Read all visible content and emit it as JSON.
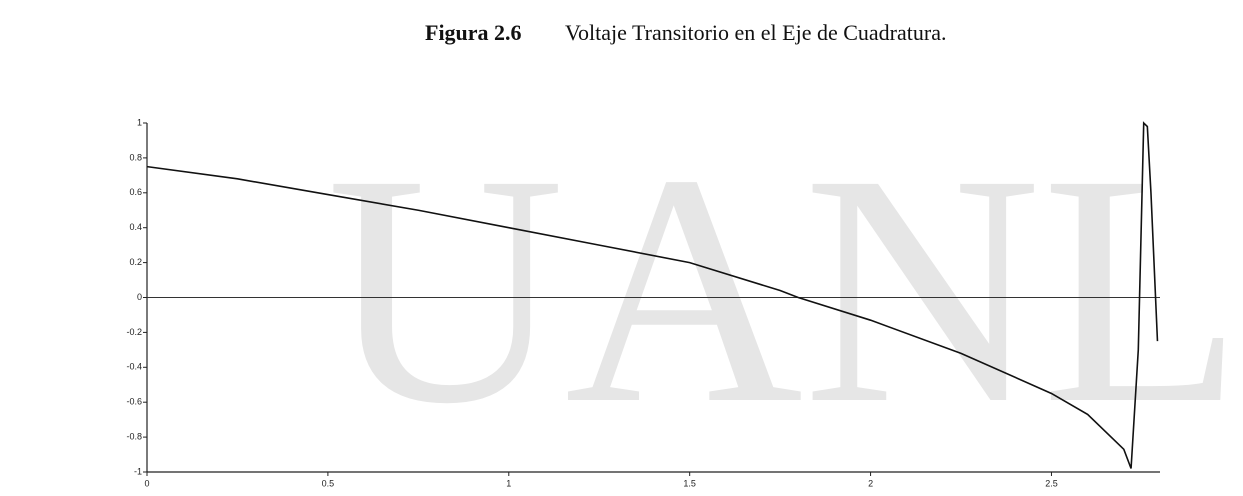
{
  "chart_data": {
    "type": "line",
    "figure_label": "Figura 2.6",
    "title": "Voltaje Transitorio en el Eje de Cuadratura.",
    "watermark": "UANL",
    "x": [
      0,
      0.25,
      0.5,
      0.75,
      1,
      1.25,
      1.5,
      1.75,
      1.8,
      2,
      2.25,
      2.5,
      2.6,
      2.7,
      2.72,
      2.74,
      2.755,
      2.765,
      2.775,
      2.793
    ],
    "series": [
      {
        "color": "#111111",
        "values": [
          0.75,
          0.68,
          0.59,
          0.5,
          0.4,
          0.3,
          0.2,
          0.04,
          0,
          -0.13,
          -0.32,
          -0.55,
          -0.67,
          -0.87,
          -0.98,
          -0.3,
          1,
          0.98,
          0.6,
          -0.25
        ]
      }
    ],
    "xlim": [
      0,
      2.8
    ],
    "ylim": [
      -1,
      1
    ],
    "xticks": [
      0,
      0.5,
      1,
      1.5,
      2,
      2.5
    ],
    "yticks": [
      1,
      0.8,
      0.6,
      0.4,
      0.2,
      0,
      -0.2,
      -0.4,
      -0.6,
      -0.8,
      -1
    ],
    "zero_line": true
  }
}
